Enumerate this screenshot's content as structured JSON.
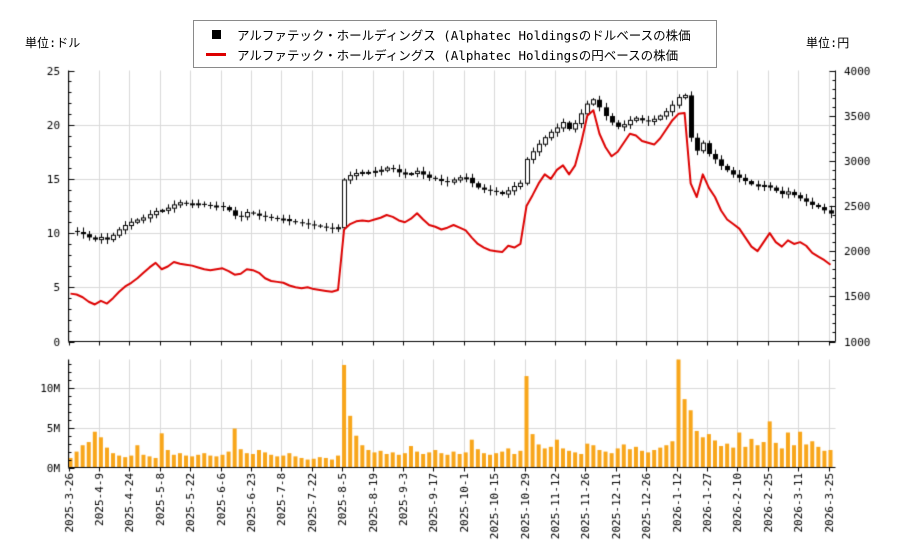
{
  "header": {
    "unit_left": "単位:ドル",
    "unit_right": "単位:円",
    "legend": [
      {
        "marker": "black-square",
        "color": "#000000",
        "label": "アルファテック・ホールディングス (Alphatec Holdingsのドルベースの株価"
      },
      {
        "marker": "red-line",
        "color": "#DD0000",
        "label": "アルファテック・ホールディングス (Alphatec Holdingsの円ベースの株価"
      }
    ]
  },
  "chart_data": [
    {
      "type": "candlestick",
      "panel": "price",
      "grid": true,
      "x_labels": [
        "2025-3-26",
        "2025-4-9",
        "2025-4-24",
        "2025-5-8",
        "2025-5-22",
        "2025-6-6",
        "2025-6-23",
        "2025-7-8",
        "2025-7-22",
        "2025-8-5",
        "2025-8-19",
        "2025-9-3",
        "2025-9-17",
        "2025-10-1",
        "2025-10-15",
        "2025-10-29",
        "2025-11-12",
        "2025-11-26",
        "2025-12-11",
        "2025-12-26",
        "2026-1-12",
        "2026-1-27",
        "2026-2-10",
        "2026-2-25",
        "2026-3-11",
        "2026-3-25"
      ],
      "left_axis": {
        "title": "単位:ドル",
        "min": 0,
        "max": 25,
        "major_ticks": [
          0,
          5,
          10,
          15,
          20,
          25
        ],
        "minor_tick_step": 1,
        "gridlines": [
          5,
          10,
          15,
          20
        ]
      },
      "right_axis": {
        "title": "単位:円",
        "min": 1000,
        "max": 4000,
        "major_ticks": [
          1000,
          1500,
          2000,
          2500,
          3000,
          3500,
          4000
        ],
        "minor_tick_step": 100
      },
      "series": [
        {
          "name": "アルファテック・ホールディングス (Alphatec Holdingsのドルベースの株価",
          "style": "candlestick",
          "axis": "left",
          "color": "#000000",
          "values": [
            10.2,
            10.1,
            9.9,
            9.6,
            9.4,
            9.6,
            9.4,
            9.8,
            10.3,
            10.7,
            11.0,
            11.2,
            11.4,
            11.7,
            12.0,
            12.1,
            12.3,
            12.6,
            12.8,
            12.7,
            12.7,
            12.7,
            12.6,
            12.5,
            12.5,
            12.4,
            12.1,
            11.6,
            11.5,
            11.9,
            11.8,
            11.6,
            11.5,
            11.4,
            11.3,
            11.3,
            11.1,
            11.0,
            10.9,
            10.8,
            10.7,
            10.6,
            10.5,
            10.4,
            10.5,
            14.9,
            15.3,
            15.5,
            15.6,
            15.6,
            15.7,
            15.8,
            16.0,
            15.9,
            15.6,
            15.4,
            15.5,
            15.7,
            15.4,
            15.1,
            15.0,
            14.8,
            14.7,
            14.9,
            15.1,
            15.1,
            14.6,
            14.2,
            14.0,
            13.9,
            13.8,
            13.6,
            13.9,
            14.3,
            14.6,
            16.8,
            17.5,
            18.2,
            18.8,
            19.3,
            19.7,
            20.2,
            19.6,
            20.1,
            21.0,
            21.9,
            22.3,
            21.6,
            20.8,
            20.2,
            19.8,
            20.0,
            20.4,
            20.6,
            20.4,
            20.3,
            20.5,
            20.8,
            21.2,
            21.8,
            22.5,
            22.7,
            18.8,
            17.6,
            18.3,
            17.3,
            16.8,
            16.2,
            15.8,
            15.4,
            15.1,
            14.8,
            14.5,
            14.3,
            14.4,
            14.2,
            13.9,
            13.6,
            13.8,
            13.5,
            13.2,
            12.9,
            12.6,
            12.4,
            12.1,
            11.8
          ]
        },
        {
          "name": "アルファテック・ホールディングス (Alphatec Holdingsの円ベースの株価",
          "style": "line",
          "axis": "right",
          "color": "#DD0000",
          "values": [
            1530,
            1520,
            1490,
            1440,
            1410,
            1450,
            1420,
            1480,
            1550,
            1610,
            1650,
            1700,
            1760,
            1820,
            1870,
            1800,
            1830,
            1880,
            1860,
            1850,
            1840,
            1820,
            1800,
            1790,
            1800,
            1810,
            1780,
            1740,
            1750,
            1800,
            1790,
            1760,
            1700,
            1670,
            1660,
            1650,
            1620,
            1600,
            1590,
            1600,
            1580,
            1570,
            1560,
            1550,
            1570,
            2240,
            2300,
            2330,
            2340,
            2330,
            2350,
            2370,
            2400,
            2380,
            2340,
            2320,
            2360,
            2420,
            2350,
            2290,
            2270,
            2240,
            2260,
            2290,
            2260,
            2230,
            2150,
            2080,
            2040,
            2010,
            2000,
            1990,
            2060,
            2040,
            2080,
            2500,
            2620,
            2750,
            2850,
            2800,
            2900,
            2950,
            2850,
            2950,
            3200,
            3500,
            3560,
            3300,
            3150,
            3050,
            3100,
            3200,
            3300,
            3280,
            3220,
            3200,
            3180,
            3250,
            3350,
            3450,
            3520,
            3530,
            2750,
            2600,
            2850,
            2700,
            2600,
            2450,
            2350,
            2300,
            2250,
            2150,
            2050,
            2000,
            2100,
            2200,
            2100,
            2050,
            2120,
            2080,
            2100,
            2060,
            1980,
            1940,
            1900,
            1850
          ]
        }
      ]
    },
    {
      "type": "bar",
      "panel": "volume",
      "name": "volume",
      "color": "#F8A61B",
      "y_axis": {
        "min": 0,
        "max_visible": 13.6,
        "major_tick_labels": [
          "0M",
          "5M",
          "10M"
        ],
        "major_tick_values": [
          0,
          5,
          10
        ],
        "minor_tick_step_millions": 1,
        "gridlines": [
          5,
          10
        ]
      },
      "values_millions": [
        1.2,
        2.0,
        2.8,
        3.2,
        4.5,
        3.8,
        2.5,
        1.8,
        1.5,
        1.3,
        1.5,
        2.8,
        1.6,
        1.4,
        1.2,
        4.3,
        2.2,
        1.6,
        1.8,
        1.5,
        1.4,
        1.6,
        1.8,
        1.5,
        1.4,
        1.6,
        2.0,
        4.9,
        2.3,
        1.8,
        1.7,
        2.2,
        1.9,
        1.6,
        1.4,
        1.5,
        1.8,
        1.4,
        1.2,
        1.0,
        1.1,
        1.3,
        1.2,
        1.0,
        1.5,
        12.9,
        6.5,
        4.0,
        2.8,
        2.2,
        1.9,
        2.1,
        1.7,
        1.9,
        1.6,
        1.8,
        2.7,
        2.0,
        1.7,
        1.9,
        2.2,
        1.8,
        1.6,
        2.0,
        1.7,
        1.9,
        3.5,
        2.3,
        1.8,
        1.6,
        1.8,
        2.0,
        2.4,
        1.7,
        2.1,
        11.5,
        4.2,
        2.9,
        2.4,
        2.6,
        3.5,
        2.4,
        2.1,
        1.9,
        1.7,
        3.0,
        2.8,
        2.2,
        2.0,
        1.8,
        2.4,
        2.9,
        2.3,
        2.6,
        2.1,
        1.9,
        2.2,
        2.5,
        2.8,
        3.3,
        13.6,
        8.6,
        7.2,
        4.6,
        3.8,
        4.2,
        3.4,
        2.7,
        3.0,
        2.5,
        4.4,
        2.6,
        3.6,
        2.8,
        3.2,
        5.8,
        3.1,
        2.4,
        4.4,
        2.8,
        4.5,
        2.9,
        3.3,
        2.6,
        2.1,
        2.2
      ]
    }
  ]
}
